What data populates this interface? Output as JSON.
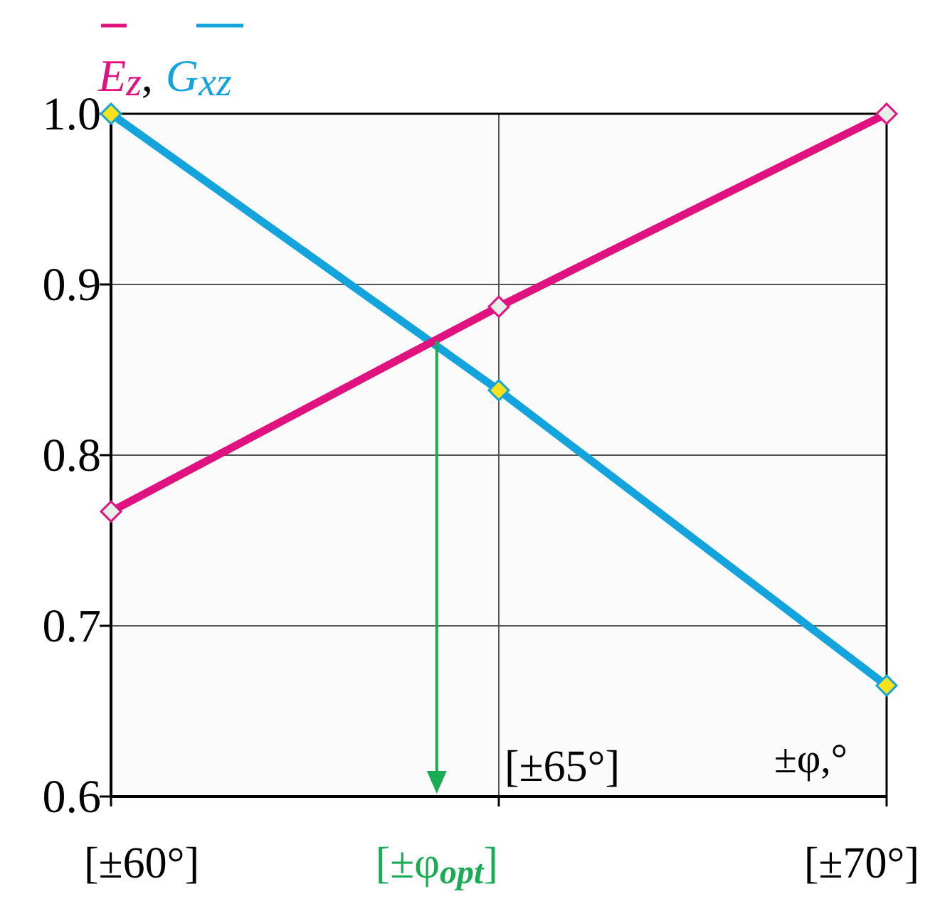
{
  "colors": {
    "ez": "#e0127f",
    "gxz": "#13a3dd",
    "opt": "#1aab55",
    "axis": "#000000",
    "grid": "#555555",
    "plot_bg": "#fbfbfb",
    "marker_open": "#e6efe8",
    "marker_filled": "#f7e21b"
  },
  "chart_data": {
    "type": "line",
    "title_parts": {
      "ez_symbol": "E",
      "ez_sub": "z",
      "separator": ",",
      "gxz_symbol": "G",
      "gxz_sub": "xz"
    },
    "xlabel": "±φ,°",
    "x_range": [
      60,
      70
    ],
    "ylim": [
      0.6,
      1.0
    ],
    "y_ticks": [
      1.0,
      0.9,
      0.8,
      0.7,
      0.6
    ],
    "y_tick_labels": [
      "1.0",
      "0.9",
      "0.8",
      "0.7",
      "0.6"
    ],
    "x_ticks": [
      60,
      65,
      70
    ],
    "x_tick_labels": [
      "[±60°]",
      "[±65°]",
      "[±70°]"
    ],
    "grid": true,
    "series": [
      {
        "key": "ez",
        "x": [
          60,
          65,
          70
        ],
        "values": [
          0.767,
          0.887,
          1.0
        ],
        "marker": "open-diamond"
      },
      {
        "key": "gxz",
        "x": [
          60,
          65,
          70
        ],
        "values": [
          1.0,
          0.838,
          0.665
        ],
        "marker": "filled-diamond"
      }
    ],
    "annotation": {
      "label_open": "[±φ",
      "label_sub": "opt",
      "label_close": "]",
      "x": 64.2,
      "y": 0.867
    }
  }
}
